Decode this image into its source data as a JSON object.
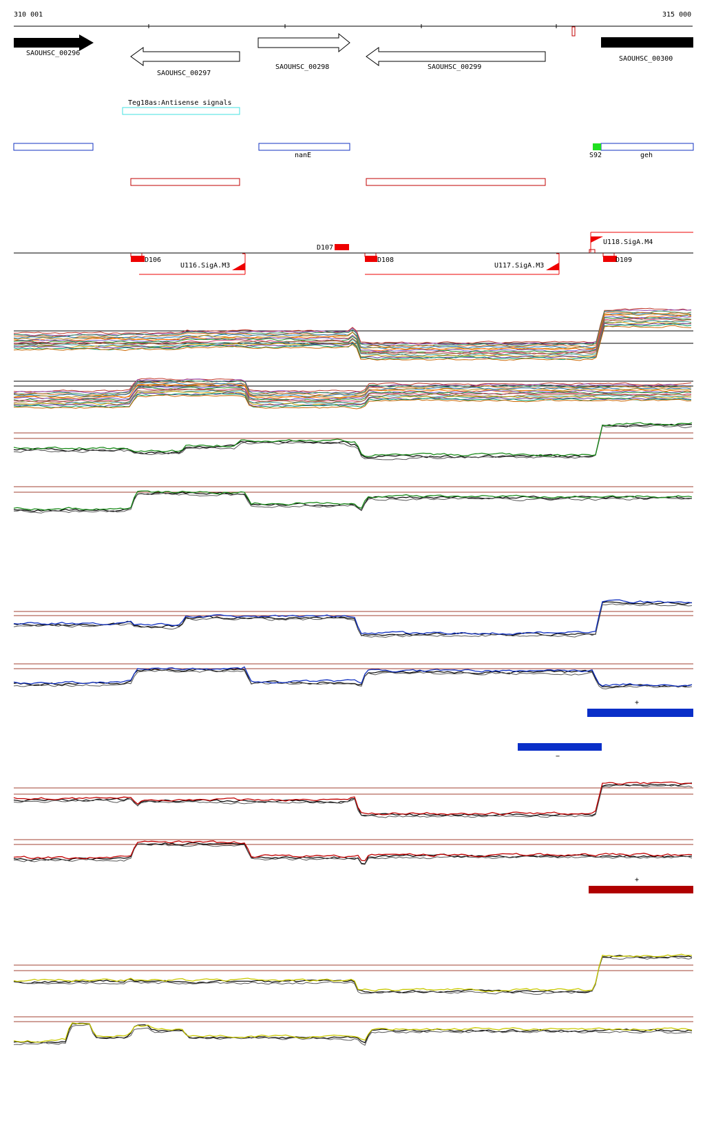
{
  "coords": {
    "start": "310 001",
    "end": "315 000"
  },
  "genes": [
    {
      "label": "SAOUHSC_00296"
    },
    {
      "label": "SAOUHSC_00297"
    },
    {
      "label": "SAOUHSC_00298"
    },
    {
      "label": "SAOUHSC_00299"
    },
    {
      "label": "SAOUHSC_00300"
    }
  ],
  "antisense": {
    "label": "Teg18as:Antisense signals"
  },
  "annotations": {
    "nanE": "nanE",
    "s92": "S92",
    "geh": "geh"
  },
  "promoters": [
    {
      "label": "D106"
    },
    {
      "label": "D107"
    },
    {
      "label": "D108"
    },
    {
      "label": "D109"
    },
    {
      "label": "U116.SigA.M3"
    },
    {
      "label": "U117.SigA.M3"
    },
    {
      "label": "U118.SigA.M4"
    }
  ],
  "strand_marks": {
    "blue_plus": "+",
    "blue_minus": "−",
    "red_plus": "+"
  },
  "colors": {
    "blue": "#1030c0",
    "red": "#c00000",
    "green": "#1a8a1a",
    "yellow": "#c8c800",
    "cyan": "#40e0e0",
    "threshold": "#a04030"
  }
}
